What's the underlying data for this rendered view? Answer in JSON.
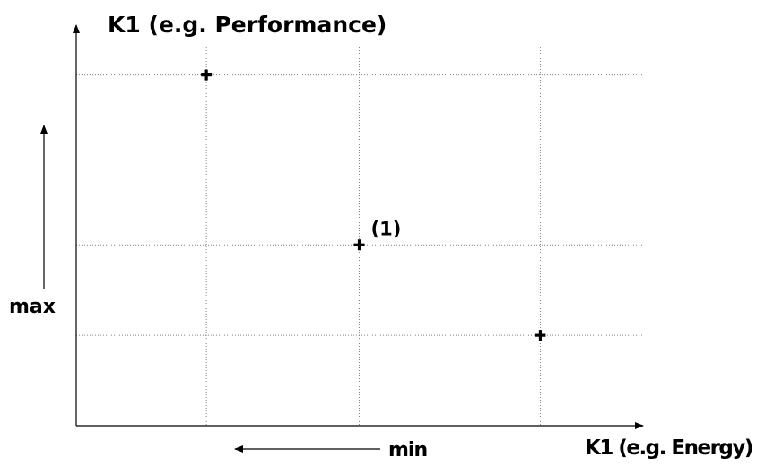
{
  "chart_data": {
    "type": "scatter",
    "title": "",
    "ylabel": "K1 (e.g. Performance)",
    "xlabel": "K1 (e.g. Energy)",
    "y_direction_label": "max",
    "x_direction_label": "min",
    "grid": true,
    "xlim": [
      0,
      10
    ],
    "ylim": [
      0,
      10
    ],
    "points": [
      {
        "x": 2.3,
        "y": 9.7,
        "label": ""
      },
      {
        "x": 5.0,
        "y": 5.0,
        "label": "(1)"
      },
      {
        "x": 8.2,
        "y": 2.5,
        "label": ""
      }
    ]
  },
  "colors": {
    "ink": "#000000",
    "grid": "#808080",
    "background": "#ffffff"
  }
}
